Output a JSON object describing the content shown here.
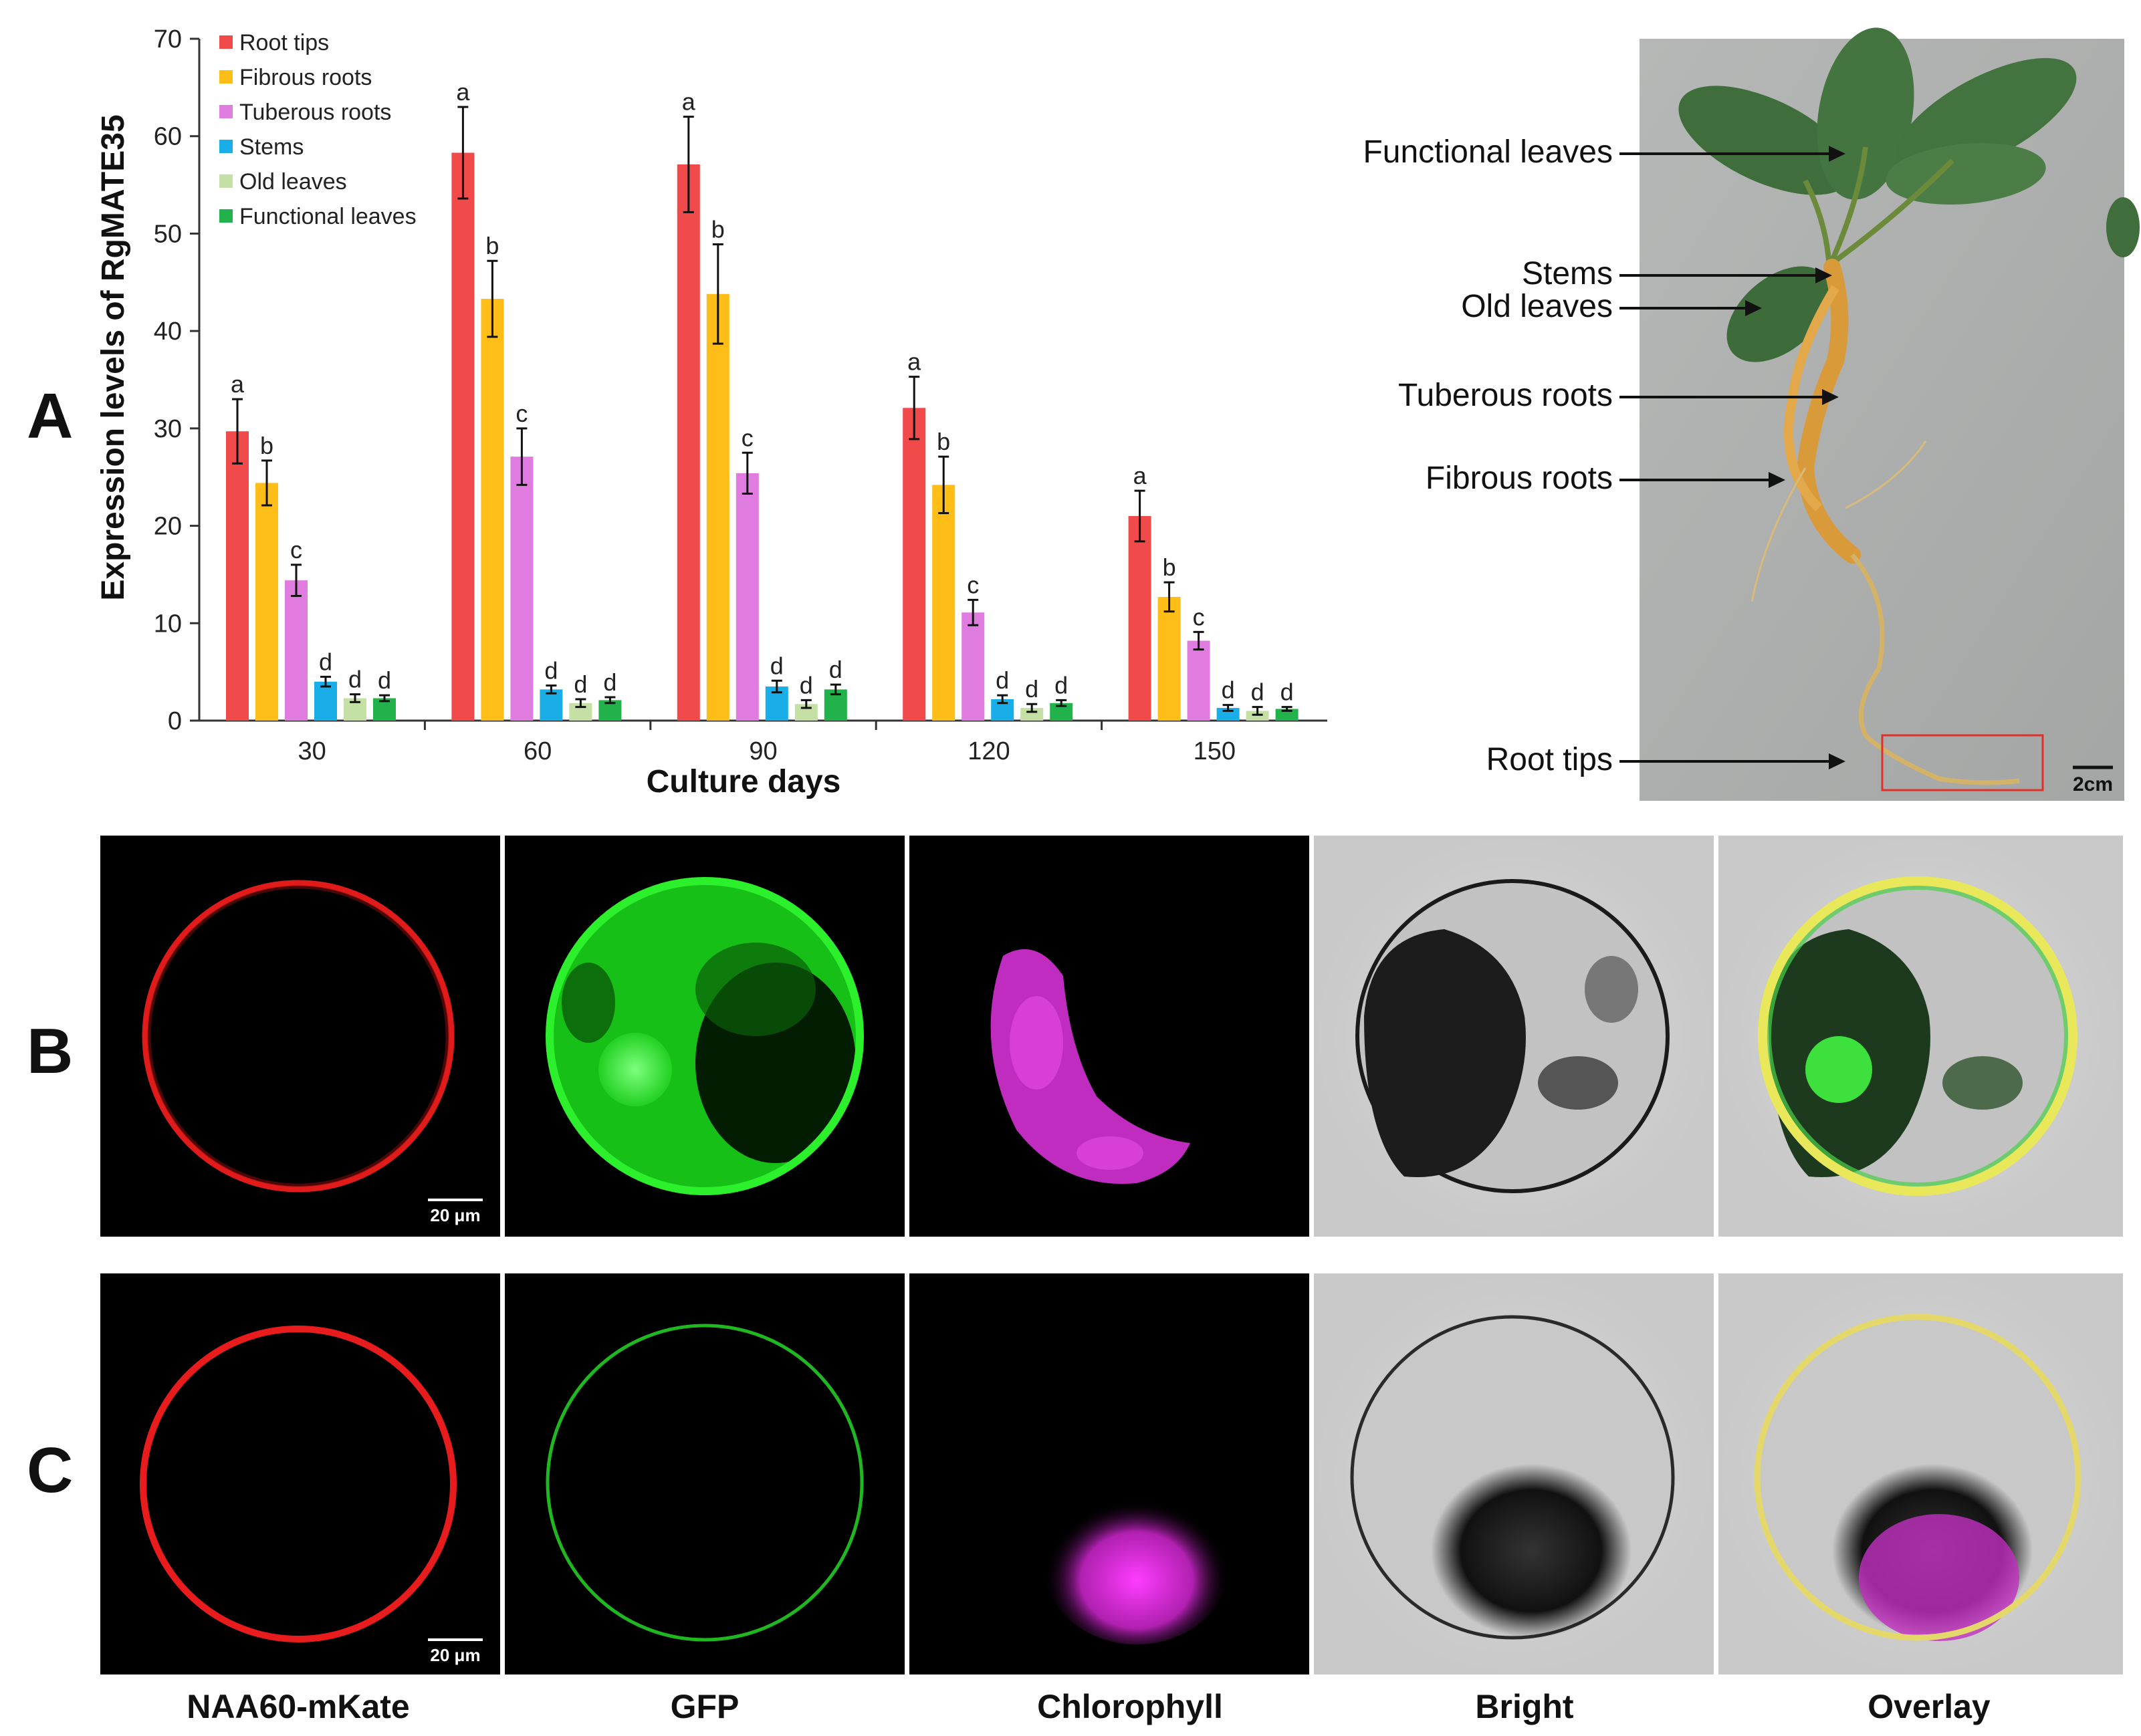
{
  "figure": {
    "panel_labels": [
      "A",
      "B",
      "C"
    ]
  },
  "chart_data": {
    "type": "bar",
    "categories": [
      "30",
      "60",
      "90",
      "120",
      "150"
    ],
    "xlabel": "Culture days",
    "ylabel": "Expression levels of RgMATE35",
    "ylim": [
      0,
      70
    ],
    "yticks": [
      0,
      10,
      20,
      30,
      40,
      50,
      60,
      70
    ],
    "legend_position": "top-left",
    "grid": false,
    "series": [
      {
        "name": "Root tips",
        "color": "#f04a4a",
        "values": [
          29.7,
          58.3,
          57.1,
          32.1,
          21.0
        ],
        "errors": [
          3.3,
          4.7,
          4.9,
          3.2,
          2.6
        ],
        "sig": [
          "a",
          "a",
          "a",
          "a",
          "a"
        ]
      },
      {
        "name": "Fibrous roots",
        "color": "#ffbe17",
        "values": [
          24.4,
          43.3,
          43.8,
          24.2,
          12.7
        ],
        "errors": [
          2.3,
          3.9,
          5.1,
          2.9,
          1.5
        ],
        "sig": [
          "b",
          "b",
          "b",
          "b",
          "b"
        ]
      },
      {
        "name": "Tuberous roots",
        "color": "#e07be0",
        "values": [
          14.4,
          27.1,
          25.4,
          11.1,
          8.2
        ],
        "errors": [
          1.6,
          2.9,
          2.1,
          1.3,
          0.9
        ],
        "sig": [
          "c",
          "c",
          "c",
          "c",
          "c"
        ]
      },
      {
        "name": "Stems",
        "color": "#1aaee8",
        "values": [
          4.0,
          3.2,
          3.5,
          2.2,
          1.3
        ],
        "errors": [
          0.5,
          0.4,
          0.6,
          0.4,
          0.3
        ],
        "sig": [
          "d",
          "d",
          "d",
          "d",
          "d"
        ]
      },
      {
        "name": "Old leaves",
        "color": "#c5e0a5",
        "values": [
          2.3,
          1.8,
          1.7,
          1.3,
          1.0
        ],
        "errors": [
          0.4,
          0.4,
          0.4,
          0.4,
          0.4
        ],
        "sig": [
          "d",
          "d",
          "d",
          "d",
          "d"
        ]
      },
      {
        "name": "Functional leaves",
        "color": "#22b24c",
        "values": [
          2.3,
          2.1,
          3.2,
          1.8,
          1.2
        ],
        "errors": [
          0.3,
          0.3,
          0.5,
          0.3,
          0.2
        ],
        "sig": [
          "d",
          "d",
          "d",
          "d",
          "d"
        ]
      }
    ]
  },
  "plant_photo": {
    "labels": [
      "Functional leaves",
      "Stems",
      "Old leaves",
      "Tuberous roots",
      "Fibrous roots",
      "Root tips"
    ],
    "scale_bar": "2cm"
  },
  "micrographs": {
    "columns": [
      "NAA60-mKate",
      "GFP",
      "Chlorophyll",
      "Bright",
      "Overlay"
    ],
    "scale_bar": "20 μm"
  }
}
